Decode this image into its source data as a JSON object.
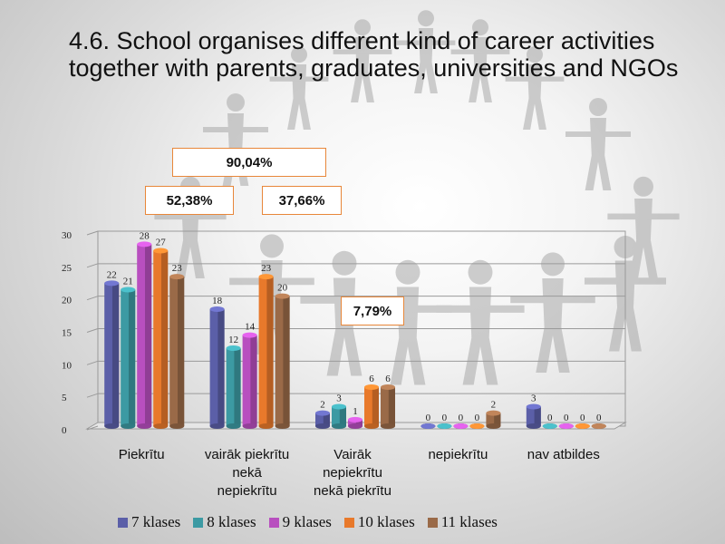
{
  "title": "4.6. School organises different kind of career activities together with parents, graduates, universities and NGOs",
  "callouts": {
    "total": "90,04%",
    "agree": "52,38%",
    "rather_agree": "37,66%",
    "rather_disagree": "7,79%"
  },
  "chart_data": {
    "type": "bar",
    "categories": [
      "Piekrītu",
      "vairāk piekrītu nekā nepiekrītu",
      "Vairāk nepiekrītu nekā piekrītu",
      "nepiekrītu",
      "nav atbildes"
    ],
    "category_lines": [
      [
        "Piekrītu"
      ],
      [
        "vairāk piekrītu",
        "nekā",
        "nepiekrītu"
      ],
      [
        "Vairāk",
        "nepiekrītu",
        "nekā piekrītu"
      ],
      [
        "nepiekrītu"
      ],
      [
        "nav atbildes"
      ]
    ],
    "series": [
      {
        "name": "7 klases",
        "values": [
          22,
          18,
          2,
          0,
          3
        ],
        "color": "#5b5fa8"
      },
      {
        "name": "8 klases",
        "values": [
          21,
          12,
          3,
          0,
          0
        ],
        "color": "#3c9aa3"
      },
      {
        "name": "9 klases",
        "values": [
          28,
          14,
          1,
          0,
          0
        ],
        "color": "#b84fbf"
      },
      {
        "name": "10 klases",
        "values": [
          27,
          23,
          6,
          0,
          0
        ],
        "color": "#e8792b"
      },
      {
        "name": "11 klases",
        "values": [
          23,
          20,
          6,
          2,
          0
        ],
        "color": "#9a6a48"
      }
    ],
    "y_ticks": [
      0,
      5,
      10,
      15,
      20,
      25,
      30
    ],
    "ylim": [
      0,
      30
    ],
    "grid": true,
    "legend_position": "bottom"
  }
}
